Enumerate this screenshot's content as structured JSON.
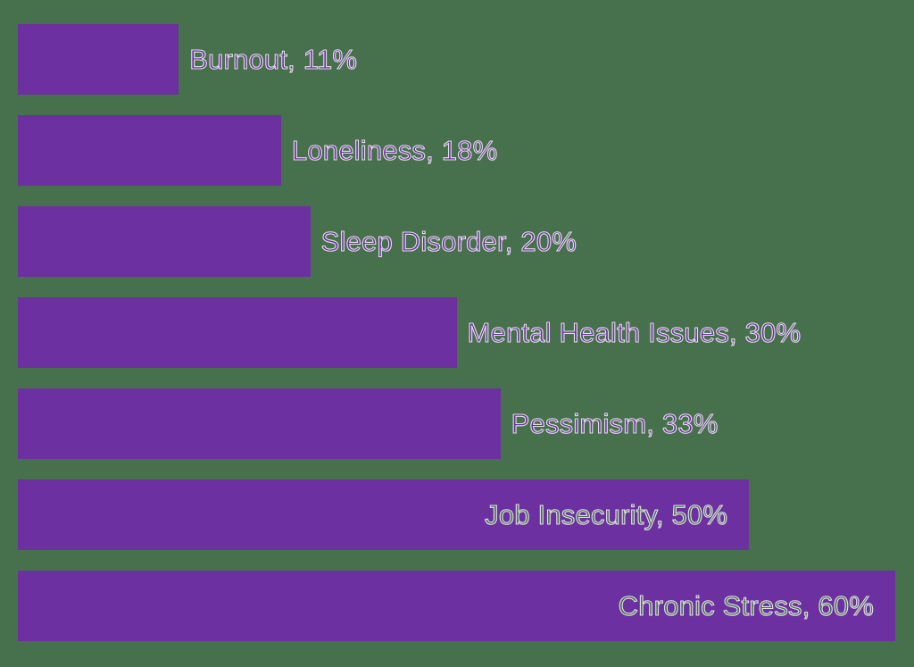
{
  "chart_data": {
    "type": "bar",
    "orientation": "horizontal",
    "title": "",
    "xlabel": "",
    "ylabel": "",
    "xlim": [
      0,
      60
    ],
    "grid": false,
    "legend": "none",
    "axes_visible": false,
    "background_color": "#47704C",
    "bar_color": "#6C30A0",
    "label_outline_color": "#FFFFFF",
    "label_fill_color_outside": "#6C30A0",
    "label_fill_color_inside": "#47704C",
    "categories": [
      "Burnout",
      "Loneliness",
      "Sleep Disorder",
      "Mental Health Issues",
      "Pessimism",
      "Job Insecurity",
      "Chronic Stress"
    ],
    "values": [
      11,
      18,
      20,
      30,
      33,
      50,
      60
    ],
    "data_labels": [
      "Burnout, 11%",
      "Loneliness, 18%",
      "Sleep Disorder, 20%",
      "Mental Health Issues, 30%",
      "Pessimism, 33%",
      "Job Insecurity, 50%",
      "Chronic Stress, 60%"
    ],
    "label_placement": [
      "outside-end",
      "outside-end",
      "outside-end",
      "outside-end",
      "outside-end",
      "inside-end",
      "inside-end"
    ]
  }
}
